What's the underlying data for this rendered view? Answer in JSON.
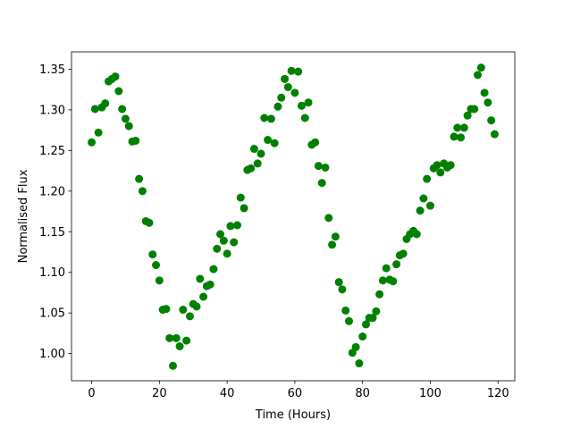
{
  "chart_data": {
    "type": "scatter",
    "xlabel": "Time (Hours)",
    "ylabel": "Normalised Flux",
    "color": "#008000",
    "x": [
      0,
      1,
      2,
      3,
      4,
      5,
      6,
      7,
      8,
      9,
      10,
      11,
      12,
      13,
      14,
      15,
      16,
      17,
      18,
      19,
      20,
      21,
      22,
      23,
      24,
      25,
      26,
      27,
      28,
      29,
      30,
      31,
      32,
      33,
      34,
      35,
      36,
      37,
      38,
      39,
      40,
      41,
      42,
      43,
      44,
      45,
      46,
      47,
      48,
      49,
      50,
      51,
      52,
      53,
      54,
      55,
      56,
      57,
      58,
      59,
      60,
      61,
      62,
      63,
      64,
      65,
      66,
      67,
      68,
      69,
      70,
      71,
      72,
      73,
      74,
      75,
      76,
      77,
      78,
      79,
      80,
      81,
      82,
      83,
      84,
      85,
      86,
      87,
      88,
      89,
      90,
      91,
      92,
      93,
      94,
      95,
      96,
      97,
      98,
      99,
      100,
      101,
      102,
      103,
      104,
      105,
      106,
      107,
      108,
      109,
      110,
      111,
      112,
      113,
      114,
      115,
      116,
      117,
      118,
      119
    ],
    "values": [
      1.26,
      1.301,
      1.272,
      1.303,
      1.308,
      1.335,
      1.338,
      1.341,
      1.323,
      1.301,
      1.289,
      1.28,
      1.261,
      1.262,
      1.215,
      1.2,
      1.163,
      1.161,
      1.122,
      1.109,
      1.09,
      1.054,
      1.055,
      1.019,
      0.985,
      1.019,
      1.009,
      1.054,
      1.016,
      1.046,
      1.061,
      1.058,
      1.092,
      1.07,
      1.083,
      1.085,
      1.104,
      1.129,
      1.147,
      1.139,
      1.123,
      1.157,
      1.137,
      1.158,
      1.192,
      1.179,
      1.226,
      1.228,
      1.252,
      1.234,
      1.246,
      1.29,
      1.263,
      1.289,
      1.259,
      1.304,
      1.315,
      1.338,
      1.328,
      1.348,
      1.321,
      1.347,
      1.305,
      1.29,
      1.309,
      1.257,
      1.26,
      1.231,
      1.21,
      1.229,
      1.167,
      1.134,
      1.144,
      1.088,
      1.079,
      1.053,
      1.04,
      1.001,
      1.008,
      0.988,
      1.021,
      1.036,
      1.044,
      1.044,
      1.052,
      1.073,
      1.09,
      1.105,
      1.091,
      1.089,
      1.11,
      1.121,
      1.123,
      1.141,
      1.147,
      1.151,
      1.147,
      1.176,
      1.191,
      1.215,
      1.182,
      1.228,
      1.232,
      1.223,
      1.234,
      1.229,
      1.232,
      1.267,
      1.278,
      1.266,
      1.278,
      1.293,
      1.301,
      1.301,
      1.343,
      1.352,
      1.321,
      1.309,
      1.287,
      1.27
    ],
    "xlim": [
      -5.95,
      124.95
    ],
    "ylim": [
      0.9666,
      1.3714
    ],
    "xticks": [
      0,
      20,
      40,
      60,
      80,
      100,
      120
    ],
    "yticks": [
      {
        "value": 1,
        "label": "1.00"
      },
      1.05,
      {
        "value": 1.1,
        "label": "1.10"
      },
      1.15,
      {
        "value": 1.2,
        "label": "1.20"
      },
      1.25,
      {
        "value": 1.3,
        "label": "1.30"
      },
      1.35
    ],
    "grid": false
  }
}
